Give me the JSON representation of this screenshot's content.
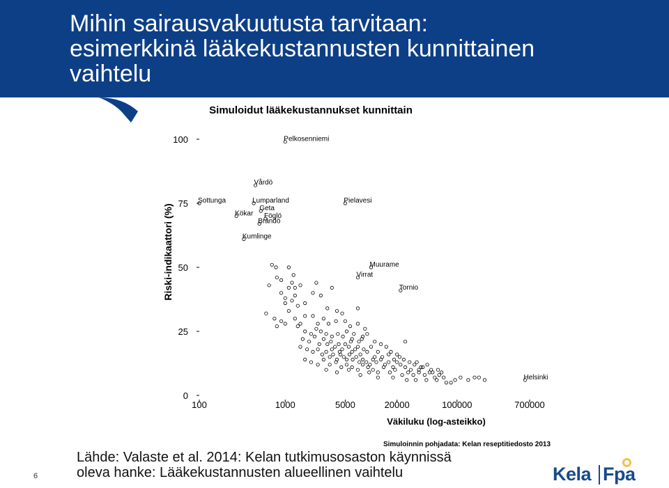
{
  "slide": {
    "title_lines": [
      "Mihin sairausvakuutusta tarvitaan:",
      "esimerkkinä lääkekustannusten kunnittainen",
      "vaihtelu"
    ],
    "source_lines": [
      "Lähde: Valaste et al. 2014: Kelan tutkimusosaston käynnissä",
      "oleva hanke: Lääkekustannusten alueellinen vaihtelu"
    ],
    "page_number": "6",
    "logo": {
      "kela": "Kela",
      "fpa": "Fpa"
    }
  },
  "colors": {
    "header": "#0d3f87",
    "text": "#000000",
    "accent": "#f2c14e"
  },
  "chart_data": {
    "type": "scatter",
    "title": "Simuloidut lääkekustannukset kunnittain",
    "xlabel": "Väkiluku (log-asteikko)",
    "ylabel": "Riski-indikaattori (%)",
    "x_scale": "log",
    "xlim": [
      100,
      700000
    ],
    "ylim": [
      0,
      100
    ],
    "x_ticks": [
      100,
      1000,
      5000,
      20000,
      100000,
      700000
    ],
    "x_tick_labels": [
      "100",
      "1000",
      "5000",
      "20000",
      "100000",
      "700000"
    ],
    "y_ticks": [
      0,
      25,
      50,
      75,
      100
    ],
    "y_tick_labels": [
      "0",
      "25",
      "50",
      "75",
      "100"
    ],
    "note": "Simuloinnin pohjadata: Kelan reseptitiedosto 2013",
    "labeled_points": [
      {
        "label": "Pelkosenniemi",
        "x": 1000,
        "y": 99
      },
      {
        "label": "Vårdö",
        "x": 450,
        "y": 82
      },
      {
        "label": "Sottunga",
        "x": 100,
        "y": 75
      },
      {
        "label": "Lumparland",
        "x": 430,
        "y": 75
      },
      {
        "label": "Geta",
        "x": 520,
        "y": 72
      },
      {
        "label": "Kökar",
        "x": 270,
        "y": 70
      },
      {
        "label": "Föglö",
        "x": 590,
        "y": 69
      },
      {
        "label": "Brändö",
        "x": 500,
        "y": 67
      },
      {
        "label": "Kumlinge",
        "x": 330,
        "y": 61
      },
      {
        "label": "Pielavesi",
        "x": 5000,
        "y": 75
      },
      {
        "label": "Muurame",
        "x": 10000,
        "y": 50
      },
      {
        "label": "Virrat",
        "x": 7000,
        "y": 46
      },
      {
        "label": "Tornio",
        "x": 22000,
        "y": 41
      },
      {
        "label": "Helsinki",
        "x": 620000,
        "y": 6
      }
    ],
    "points": [
      [
        700,
        51
      ],
      [
        780,
        50
      ],
      [
        1100,
        50
      ],
      [
        1250,
        47
      ],
      [
        800,
        46
      ],
      [
        900,
        45
      ],
      [
        1200,
        44
      ],
      [
        1100,
        42
      ],
      [
        1300,
        42
      ],
      [
        650,
        43
      ],
      [
        1500,
        43
      ],
      [
        2300,
        44
      ],
      [
        3500,
        42
      ],
      [
        2100,
        40
      ],
      [
        2600,
        39
      ],
      [
        900,
        40
      ],
      [
        1000,
        38
      ],
      [
        1300,
        39
      ],
      [
        1000,
        36
      ],
      [
        1200,
        37
      ],
      [
        1400,
        35
      ],
      [
        1700,
        36
      ],
      [
        3100,
        34
      ],
      [
        4000,
        33
      ],
      [
        4600,
        32
      ],
      [
        7000,
        34
      ],
      [
        600,
        32
      ],
      [
        750,
        30
      ],
      [
        900,
        29
      ],
      [
        1100,
        33
      ],
      [
        1300,
        30
      ],
      [
        1500,
        28
      ],
      [
        1700,
        31
      ],
      [
        2100,
        31
      ],
      [
        2400,
        28
      ],
      [
        2800,
        30
      ],
      [
        3200,
        28
      ],
      [
        3900,
        29
      ],
      [
        5000,
        29
      ],
      [
        5700,
        27
      ],
      [
        7000,
        28
      ],
      [
        8500,
        26
      ],
      [
        800,
        27
      ],
      [
        1000,
        28
      ],
      [
        1400,
        27
      ],
      [
        1700,
        25
      ],
      [
        2000,
        24
      ],
      [
        2300,
        26
      ],
      [
        2600,
        25
      ],
      [
        3000,
        24
      ],
      [
        3500,
        23
      ],
      [
        4100,
        24
      ],
      [
        4700,
        23
      ],
      [
        5200,
        25
      ],
      [
        6000,
        22
      ],
      [
        7200,
        21
      ],
      [
        8000,
        23
      ],
      [
        9000,
        24
      ],
      [
        1600,
        22
      ],
      [
        1900,
        21
      ],
      [
        2200,
        23
      ],
      [
        2500,
        20
      ],
      [
        2800,
        22
      ],
      [
        3100,
        20
      ],
      [
        3400,
        21
      ],
      [
        3800,
        19
      ],
      [
        4200,
        20
      ],
      [
        4600,
        18
      ],
      [
        5000,
        20
      ],
      [
        5500,
        19
      ],
      [
        6000,
        17
      ],
      [
        6500,
        18
      ],
      [
        7000,
        19
      ],
      [
        7500,
        16
      ],
      [
        8200,
        18
      ],
      [
        9000,
        17
      ],
      [
        10000,
        19
      ],
      [
        11000,
        15
      ],
      [
        12000,
        17
      ],
      [
        13500,
        15
      ],
      [
        15000,
        19
      ],
      [
        17000,
        17
      ],
      [
        20000,
        16
      ],
      [
        25000,
        21
      ],
      [
        1500,
        19
      ],
      [
        1800,
        18
      ],
      [
        2100,
        17
      ],
      [
        2400,
        18
      ],
      [
        2700,
        16
      ],
      [
        3000,
        17
      ],
      [
        3300,
        15
      ],
      [
        3600,
        16
      ],
      [
        4000,
        14
      ],
      [
        4400,
        16
      ],
      [
        4800,
        15
      ],
      [
        5200,
        14
      ],
      [
        5600,
        16
      ],
      [
        6100,
        14
      ],
      [
        6700,
        15
      ],
      [
        7300,
        13
      ],
      [
        8000,
        14
      ],
      [
        8800,
        13
      ],
      [
        9700,
        12
      ],
      [
        10500,
        14
      ],
      [
        11500,
        13
      ],
      [
        13000,
        14
      ],
      [
        14500,
        12
      ],
      [
        16000,
        13
      ],
      [
        18000,
        11
      ],
      [
        20000,
        13
      ],
      [
        22000,
        12
      ],
      [
        25000,
        11
      ],
      [
        28000,
        13
      ],
      [
        32000,
        12
      ],
      [
        36000,
        10
      ],
      [
        40000,
        11
      ],
      [
        45000,
        12
      ],
      [
        50000,
        10
      ],
      [
        1700,
        14
      ],
      [
        2000,
        13
      ],
      [
        2400,
        12
      ],
      [
        2800,
        14
      ],
      [
        3300,
        12
      ],
      [
        3900,
        13
      ],
      [
        4500,
        11
      ],
      [
        5200,
        12
      ],
      [
        6000,
        11
      ],
      [
        7000,
        10
      ],
      [
        8000,
        12
      ],
      [
        9200,
        11
      ],
      [
        10500,
        10
      ],
      [
        12000,
        9
      ],
      [
        14000,
        11
      ],
      [
        16500,
        9
      ],
      [
        19000,
        10
      ],
      [
        23000,
        8
      ],
      [
        27000,
        9
      ],
      [
        31000,
        8
      ],
      [
        36000,
        9
      ],
      [
        42000,
        8
      ],
      [
        48000,
        9
      ],
      [
        55000,
        7
      ],
      [
        62000,
        8
      ],
      [
        70000,
        7
      ],
      [
        95000,
        6
      ],
      [
        110000,
        7
      ],
      [
        135000,
        6
      ],
      [
        160000,
        7
      ],
      [
        180000,
        7
      ],
      [
        210000,
        6
      ],
      [
        60000,
        10
      ],
      [
        75000,
        5
      ],
      [
        85000,
        5
      ],
      [
        3000,
        10
      ],
      [
        4000,
        9
      ],
      [
        5500,
        10
      ],
      [
        7500,
        8
      ],
      [
        9500,
        9
      ],
      [
        12000,
        7
      ],
      [
        18000,
        7
      ],
      [
        26000,
        6
      ],
      [
        33000,
        6
      ],
      [
        44000,
        6
      ],
      [
        58000,
        6
      ],
      [
        3500,
        18
      ],
      [
        4300,
        17
      ],
      [
        5800,
        21
      ],
      [
        6300,
        24
      ],
      [
        7800,
        22
      ],
      [
        11000,
        21
      ],
      [
        13000,
        20
      ],
      [
        16000,
        16
      ],
      [
        18500,
        14
      ],
      [
        21500,
        15
      ],
      [
        24000,
        14
      ],
      [
        29000,
        10
      ],
      [
        34000,
        13
      ],
      [
        38000,
        11
      ],
      [
        52000,
        9
      ],
      [
        66000,
        9
      ]
    ]
  }
}
